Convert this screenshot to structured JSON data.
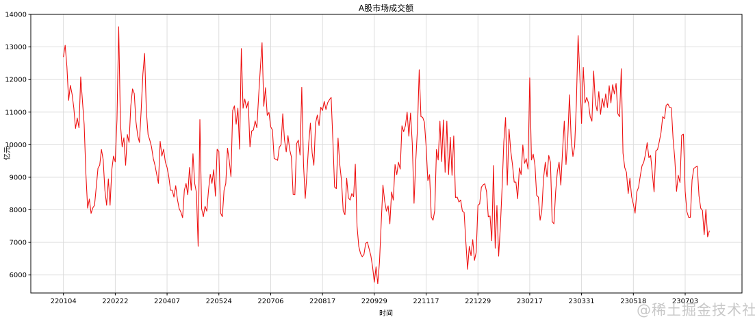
{
  "title": "A股市场成交额",
  "watermark": "@稀土掘金技术社区",
  "chart_data": {
    "type": "line",
    "title": "A股市场成交额",
    "xlabel": "时间",
    "ylabel": "亿元",
    "grid": true,
    "legend_position": "none",
    "line_color": "#ee1111",
    "grid_color": "#d9d9d9",
    "spine_color": "#000000",
    "background_color": "#ffffff",
    "ylim": [
      5447,
      14000
    ],
    "y_ticks": [
      6000,
      7000,
      8000,
      9000,
      10000,
      11000,
      12000,
      13000,
      14000
    ],
    "x_range_days": [
      -18.9,
      392.9
    ],
    "x_ticks": [
      {
        "day": 0,
        "label": "220104"
      },
      {
        "day": 30,
        "label": "220222"
      },
      {
        "day": 60,
        "label": "220407"
      },
      {
        "day": 90,
        "label": "220524"
      },
      {
        "day": 120,
        "label": "220706"
      },
      {
        "day": 150,
        "label": "220817"
      },
      {
        "day": 180,
        "label": "220929"
      },
      {
        "day": 210,
        "label": "221117"
      },
      {
        "day": 240,
        "label": "221229"
      },
      {
        "day": 270,
        "label": "230217"
      },
      {
        "day": 300,
        "label": "230331"
      },
      {
        "day": 330,
        "label": "230518"
      },
      {
        "day": 360,
        "label": "230703"
      }
    ],
    "series": [
      {
        "name": "A股市场成交额(亿元)",
        "start_day": 0,
        "values": [
          12700,
          13050,
          12400,
          11360,
          11820,
          11550,
          11130,
          10500,
          10820,
          10520,
          12080,
          11350,
          10620,
          9100,
          8050,
          8330,
          7890,
          8060,
          8140,
          8700,
          9280,
          9370,
          9850,
          9540,
          8600,
          8140,
          8950,
          8140,
          9230,
          9650,
          9470,
          10770,
          13620,
          10630,
          9930,
          10210,
          9370,
          10310,
          10070,
          11190,
          11710,
          11570,
          10700,
          10280,
          10070,
          11050,
          12170,
          12800,
          11050,
          10310,
          10140,
          9930,
          9580,
          9370,
          9090,
          8810,
          10100,
          9650,
          9860,
          9470,
          9300,
          9020,
          8600,
          8600,
          8390,
          8740,
          8320,
          8040,
          7930,
          7760,
          8600,
          8810,
          8460,
          9300,
          8600,
          9720,
          8810,
          8530,
          6880,
          10770,
          8040,
          7790,
          8110,
          7960,
          8600,
          9090,
          8810,
          9230,
          8420,
          9860,
          9790,
          7900,
          7790,
          8600,
          8810,
          9890,
          9510,
          9020,
          11050,
          11190,
          10630,
          11120,
          9860,
          12950,
          11120,
          11400,
          11120,
          11330,
          9930,
          10420,
          10450,
          10730,
          10520,
          11470,
          12340,
          13130,
          11180,
          11750,
          10900,
          10990,
          10550,
          10450,
          9580,
          9550,
          9520,
          9920,
          10000,
          10950,
          10150,
          9780,
          10280,
          9850,
          9620,
          8470,
          8460,
          10030,
          10140,
          9680,
          11760,
          9400,
          8350,
          9120,
          10030,
          10660,
          9750,
          9370,
          10660,
          10910,
          10590,
          11150,
          11050,
          11330,
          11080,
          11290,
          11380,
          11450,
          10150,
          8700,
          8650,
          10200,
          9390,
          8900,
          7960,
          7850,
          8970,
          8370,
          8300,
          8500,
          8400,
          9400,
          7500,
          6880,
          6660,
          6560,
          6630,
          6970,
          7010,
          6800,
          6590,
          6250,
          5780,
          6250,
          5730,
          6400,
          7600,
          8760,
          8270,
          7960,
          8120,
          7570,
          8550,
          8300,
          9390,
          9080,
          9460,
          9250,
          10580,
          10400,
          10580,
          11000,
          10260,
          10970,
          10020,
          8200,
          9500,
          10500,
          12300,
          10860,
          10840,
          10690,
          9950,
          8900,
          9080,
          7780,
          7680,
          7980,
          9850,
          9530,
          10720,
          9480,
          10760,
          9150,
          10720,
          9080,
          10230,
          9060,
          10270,
          8380,
          8390,
          8240,
          8300,
          7960,
          7920,
          7015,
          6175,
          6880,
          6590,
          7085,
          6450,
          6700,
          8135,
          8185,
          8695,
          8765,
          8800,
          8555,
          7785,
          7815,
          7050,
          9360,
          6820,
          8130,
          6580,
          7500,
          8690,
          10090,
          10830,
          8760,
          10480,
          9810,
          9390,
          8850,
          8850,
          8340,
          9290,
          9080,
          9990,
          9430,
          9570,
          9250,
          12050,
          9530,
          9710,
          9380,
          8450,
          8390,
          7680,
          7990,
          8970,
          9460,
          9010,
          9670,
          9460,
          7640,
          7570,
          8550,
          9180,
          9460,
          8760,
          9810,
          10720,
          9390,
          10160,
          11530,
          10160,
          9640,
          9950,
          11280,
          13350,
          12120,
          10650,
          12370,
          11280,
          11450,
          11280,
          10860,
          10720,
          12260,
          11280,
          11040,
          11630,
          10930,
          11420,
          11140,
          11560,
          11140,
          11810,
          11280,
          11840,
          11560,
          11880,
          10950,
          10860,
          12330,
          9740,
          9300,
          9150,
          8500,
          8970,
          8400,
          8170,
          7900,
          8550,
          8690,
          9040,
          9350,
          9460,
          9700,
          10060,
          9600,
          9670,
          9110,
          8550,
          9810,
          9850,
          10090,
          10370,
          10860,
          10800,
          11210,
          11250,
          11140,
          11130,
          10180,
          9550,
          8570,
          9060,
          8840,
          10290,
          10320,
          8570,
          7940,
          7770,
          7770,
          8920,
          9270,
          9310,
          9340,
          8430,
          8050,
          7980,
          7240,
          8010,
          7170,
          7350
        ]
      }
    ]
  }
}
